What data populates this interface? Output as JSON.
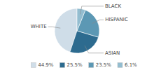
{
  "chart_data": {
    "type": "pie",
    "categories": [
      "WHITE",
      "ASIAN",
      "HISPANIC",
      "BLACK"
    ],
    "values": [
      44.9,
      25.5,
      23.5,
      6.1
    ],
    "value_labels": [
      "44.9%",
      "25.5%",
      "23.5%",
      "6.1%"
    ],
    "colors": [
      "#cfdde8",
      "#2d6b8f",
      "#5c98b4",
      "#93bdd0"
    ],
    "legend": "bottom"
  }
}
